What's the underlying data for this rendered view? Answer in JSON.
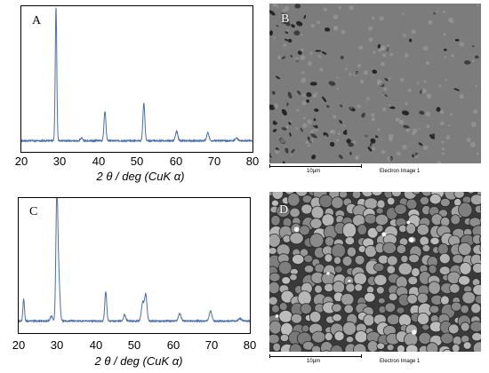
{
  "panels": {
    "a": {
      "letter": "A",
      "xlabel": "2 θ / deg (CuK α)",
      "xticks": [
        "20",
        "30",
        "40",
        "50",
        "60",
        "70",
        "80"
      ]
    },
    "c": {
      "letter": "C",
      "xlabel": "2 θ / deg (CuK α)",
      "xticks": [
        "20",
        "30",
        "40",
        "50",
        "60",
        "70",
        "80"
      ]
    },
    "b": {
      "letter": "B",
      "scale_label": "10μm",
      "caption": "Electron Image 1",
      "texture": "porous-grain-network"
    },
    "d": {
      "letter": "D",
      "scale_label": "10μm",
      "caption": "Electron Image 1",
      "texture": "dense-rounded-grains"
    }
  },
  "chart_data": [
    {
      "type": "line",
      "panel": "A",
      "xlabel": "2 θ / deg (CuK α)",
      "ylabel": "",
      "xlim": [
        20,
        80
      ],
      "ylim": [
        0,
        100
      ],
      "line_color": "#4a6fa8",
      "baseline": 3,
      "peaks": [
        {
          "x": 29.0,
          "height": 100,
          "width": 0.2
        },
        {
          "x": 35.6,
          "height": 2,
          "width": 0.3
        },
        {
          "x": 41.7,
          "height": 22,
          "width": 0.25
        },
        {
          "x": 51.8,
          "height": 28,
          "width": 0.25
        },
        {
          "x": 60.3,
          "height": 7,
          "width": 0.3
        },
        {
          "x": 68.4,
          "height": 6,
          "width": 0.3
        },
        {
          "x": 75.8,
          "height": 2,
          "width": 0.35
        }
      ]
    },
    {
      "type": "line",
      "panel": "C",
      "xlabel": "2 θ / deg (CuK α)",
      "ylabel": "",
      "xlim": [
        20,
        80
      ],
      "ylim": [
        0,
        100
      ],
      "line_color": "#4a6fa8",
      "baseline": 4,
      "peaks": [
        {
          "x": 21.3,
          "height": 18,
          "width": 0.2
        },
        {
          "x": 28.5,
          "height": 4,
          "width": 0.3
        },
        {
          "x": 29.9,
          "height": 100,
          "width": 0.25
        },
        {
          "x": 30.4,
          "height": 35,
          "width": 0.3
        },
        {
          "x": 42.6,
          "height": 24,
          "width": 0.25
        },
        {
          "x": 47.5,
          "height": 5,
          "width": 0.3
        },
        {
          "x": 52.2,
          "height": 15,
          "width": 0.35
        },
        {
          "x": 53.0,
          "height": 21,
          "width": 0.3
        },
        {
          "x": 61.8,
          "height": 6,
          "width": 0.35
        },
        {
          "x": 69.8,
          "height": 8,
          "width": 0.35
        },
        {
          "x": 77.5,
          "height": 2,
          "width": 0.4
        }
      ]
    }
  ]
}
